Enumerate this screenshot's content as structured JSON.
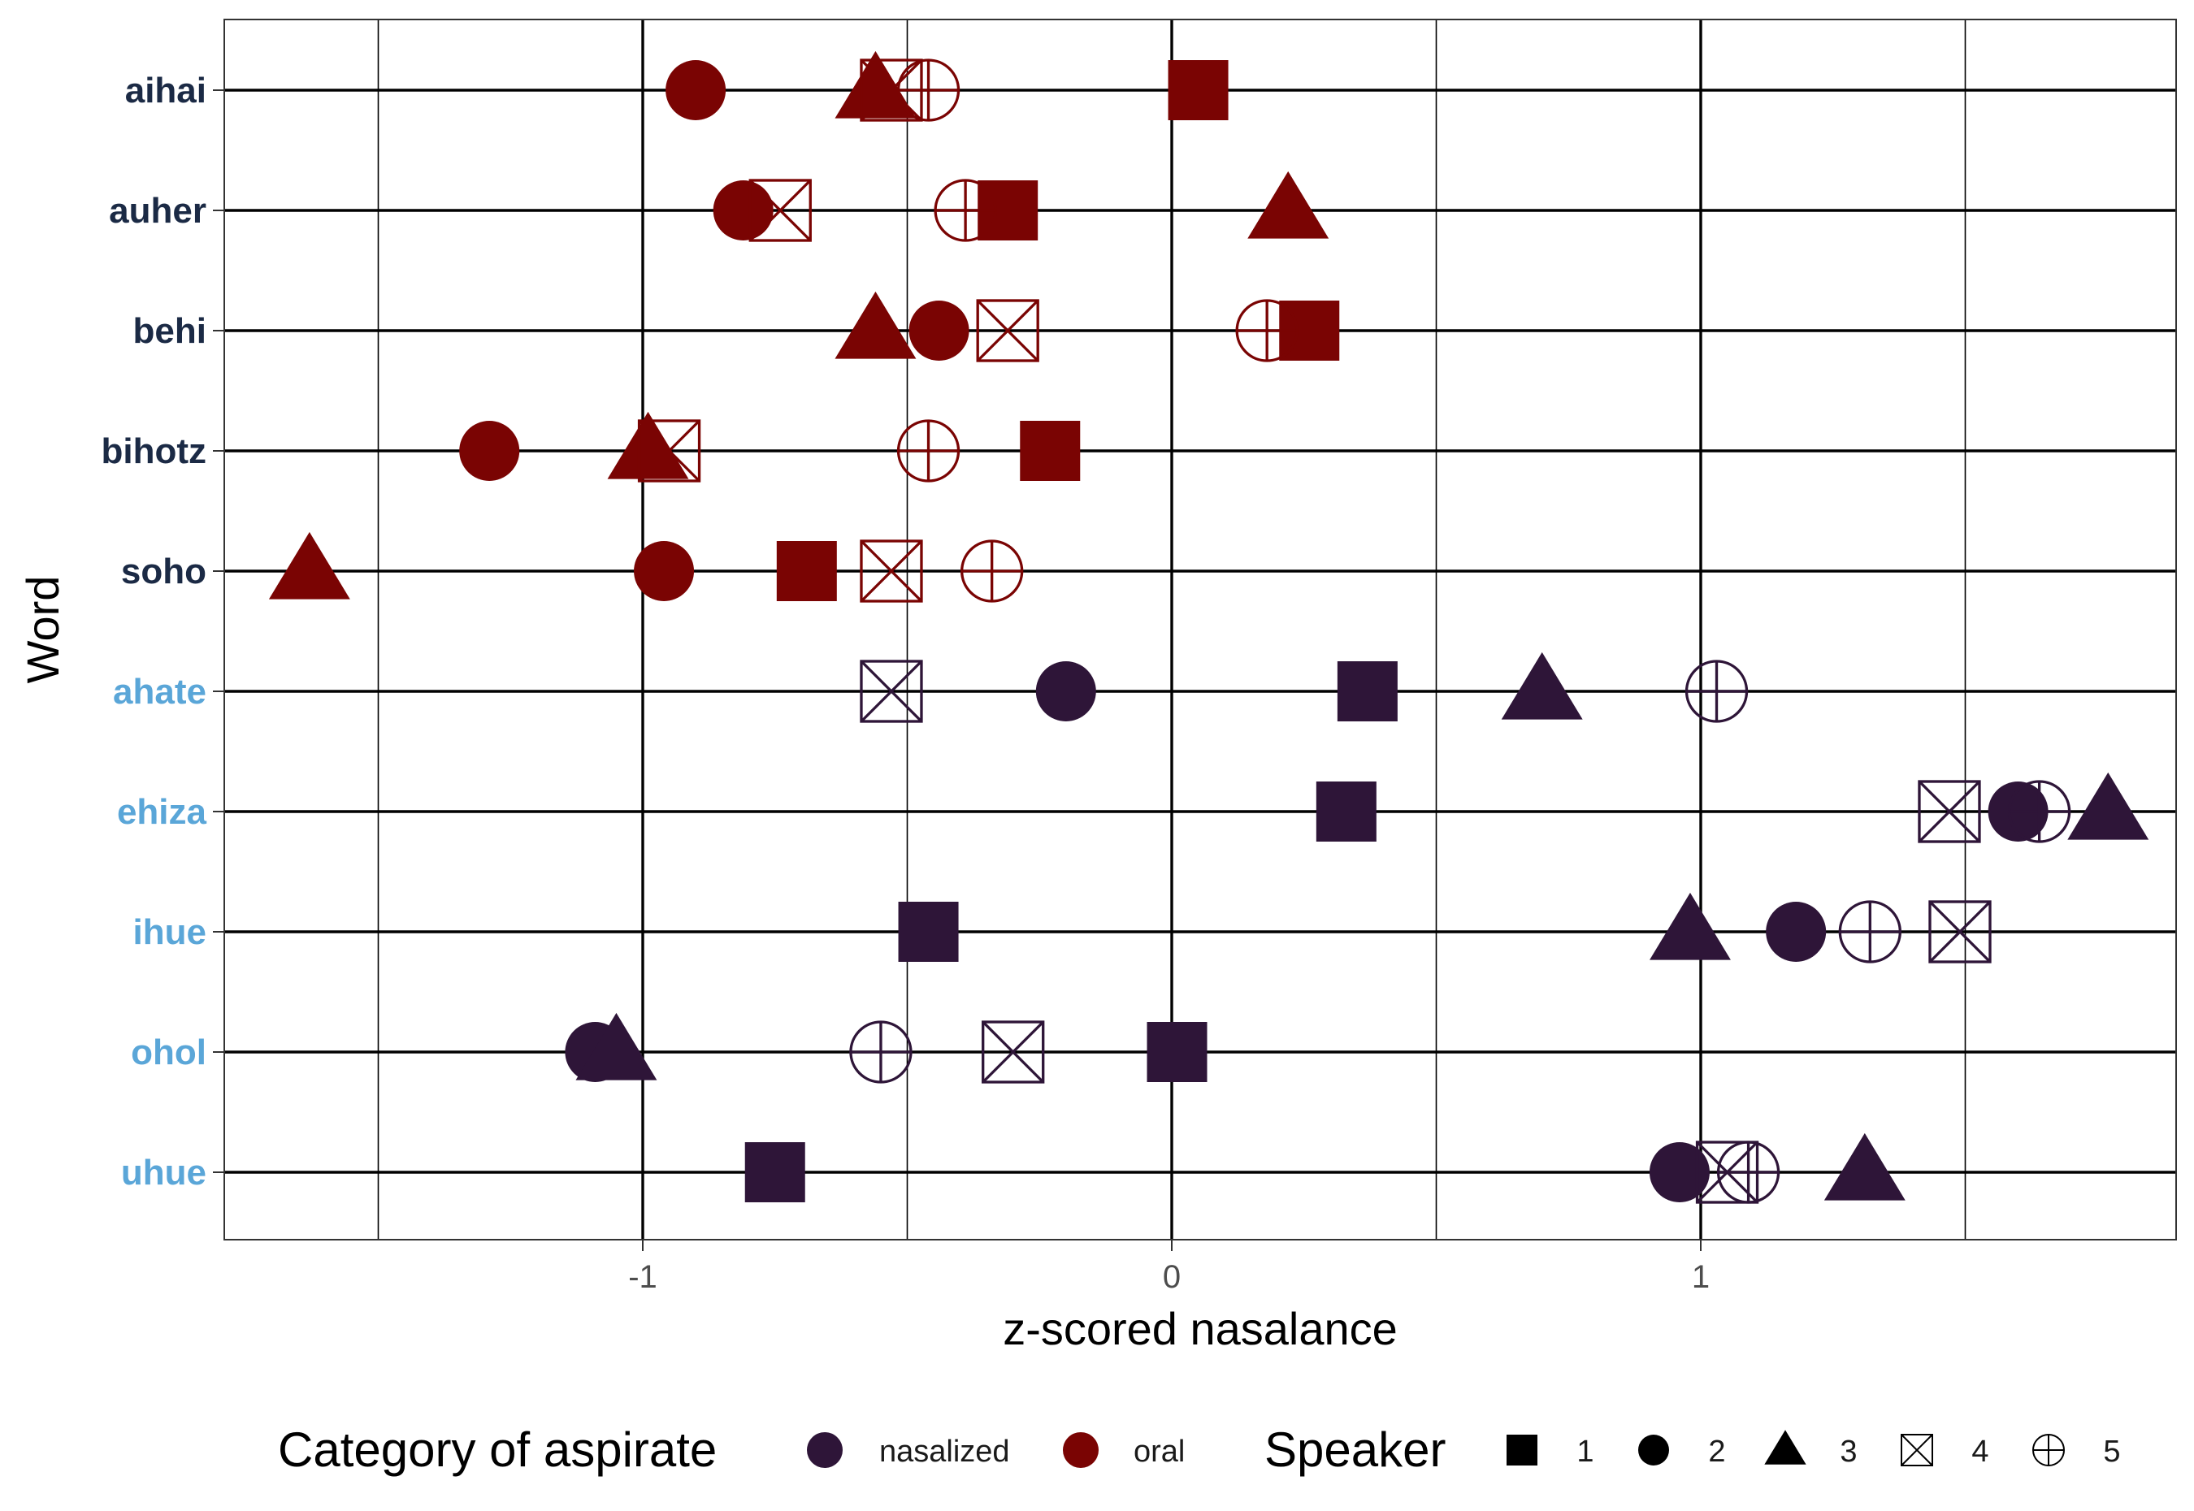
{
  "chart_data": {
    "type": "scatter",
    "xlabel": "z-scored nasalance",
    "ylabel": "Word",
    "xlim": [
      -1.8,
      1.9
    ],
    "x_ticks": [
      -1,
      0,
      1
    ],
    "x_tick_labels": [
      "-1",
      "0",
      "1"
    ],
    "grid": true,
    "legend_position": "bottom",
    "colors": {
      "nasalized": "#2e1538",
      "oral": "#7a0403"
    },
    "label_colors": {
      "oral": "#1b2a45",
      "nasalized": "#5aa6d8"
    },
    "words": [
      {
        "word": "aihai",
        "category": "oral"
      },
      {
        "word": "auher",
        "category": "oral"
      },
      {
        "word": "behi",
        "category": "oral"
      },
      {
        "word": "bihotz",
        "category": "oral"
      },
      {
        "word": "soho",
        "category": "oral"
      },
      {
        "word": "ahate",
        "category": "nasalized"
      },
      {
        "word": "ehiza",
        "category": "nasalized"
      },
      {
        "word": "ihue",
        "category": "nasalized"
      },
      {
        "word": "ohol",
        "category": "nasalized"
      },
      {
        "word": "uhue",
        "category": "nasalized"
      }
    ],
    "series": [
      {
        "name": "1",
        "shape": "square",
        "values": {
          "aihai": 0.05,
          "auher": -0.31,
          "behi": 0.26,
          "bihotz": -0.23,
          "soho": -0.69,
          "ahate": 0.37,
          "ehiza": 0.33,
          "ihue": -0.46,
          "ohol": 0.01,
          "uhue": -0.75
        }
      },
      {
        "name": "2",
        "shape": "circle",
        "values": {
          "aihai": -0.9,
          "auher": -0.81,
          "behi": -0.44,
          "bihotz": -1.29,
          "soho": -0.96,
          "ahate": -0.2,
          "ehiza": 1.6,
          "ihue": 1.18,
          "ohol": -1.09,
          "uhue": 0.96
        }
      },
      {
        "name": "3",
        "shape": "triangle",
        "values": {
          "aihai": -0.56,
          "auher": 0.22,
          "behi": -0.56,
          "bihotz": -0.99,
          "soho": -1.63,
          "ahate": 0.7,
          "ehiza": 1.77,
          "ihue": 0.98,
          "ohol": -1.05,
          "uhue": 1.31
        }
      },
      {
        "name": "4",
        "shape": "square-cross",
        "values": {
          "aihai": -0.53,
          "auher": -0.74,
          "behi": -0.31,
          "bihotz": -0.95,
          "soho": -0.53,
          "ahate": -0.53,
          "ehiza": 1.47,
          "ihue": 1.49,
          "ohol": -0.3,
          "uhue": 1.05
        }
      },
      {
        "name": "5",
        "shape": "circle-plus",
        "values": {
          "aihai": -0.46,
          "auher": -0.39,
          "behi": 0.18,
          "bihotz": -0.46,
          "soho": -0.34,
          "ahate": 1.03,
          "ehiza": 1.64,
          "ihue": 1.32,
          "ohol": -0.55,
          "uhue": 1.09
        }
      }
    ]
  },
  "legend": {
    "category_title": "Category of aspirate",
    "category_items": [
      {
        "label": "nasalized",
        "color": "#2e1538"
      },
      {
        "label": "oral",
        "color": "#7a0403"
      }
    ],
    "speaker_title": "Speaker",
    "speaker_items": [
      {
        "label": "1",
        "shape": "square"
      },
      {
        "label": "2",
        "shape": "circle"
      },
      {
        "label": "3",
        "shape": "triangle"
      },
      {
        "label": "4",
        "shape": "square-cross"
      },
      {
        "label": "5",
        "shape": "circle-plus"
      }
    ]
  }
}
